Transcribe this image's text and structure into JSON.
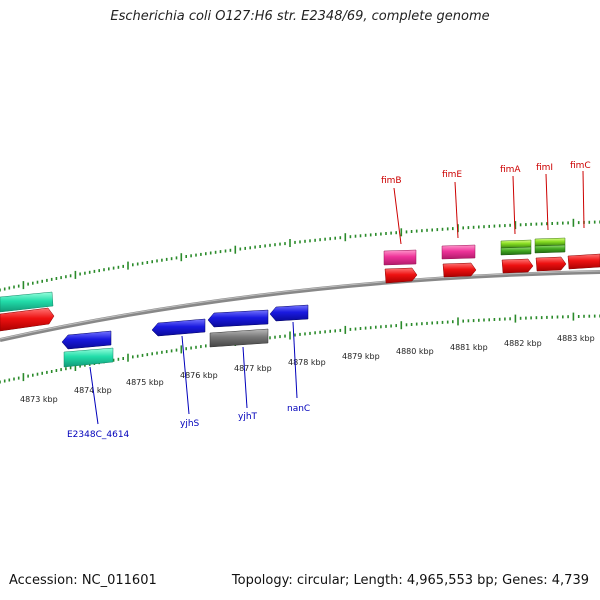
{
  "title": "Escherichia coli O127:H6 str. E2348/69, complete genome",
  "footer": {
    "accession": "Accession: NC_011601",
    "topology": "Topology: circular; Length: 4,965,553 bp; Genes: 4,739"
  },
  "colors": {
    "backbone": "#8a8a8a",
    "tick": "#2a8a2a",
    "forward_red": "#ee1111",
    "magenta": "#ee3399",
    "lime": "#88dd22",
    "teal": "#22ddaa",
    "reverse_blue": "#1a1ae0",
    "gray": "#777777",
    "label_red": "#cc0000",
    "label_blue": "#0000bb"
  },
  "scale_labels": [
    "4873 kbp",
    "4874 kbp",
    "4875 kbp",
    "4876 kbp",
    "4877 kbp",
    "4878 kbp",
    "4879 kbp",
    "4880 kbp",
    "4881 kbp",
    "4882 kbp",
    "4883 kbp"
  ],
  "forward_gene_labels": [
    "fimB",
    "fimE",
    "fimA",
    "fimI",
    "fimC"
  ],
  "reverse_gene_labels": [
    "E2348C_4614",
    "yjhS",
    "yjhT",
    "nanC"
  ]
}
